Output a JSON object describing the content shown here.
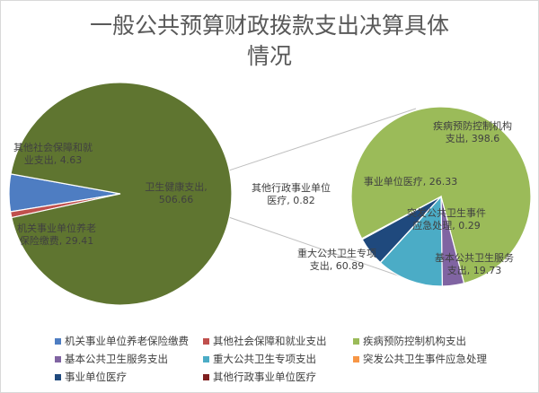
{
  "chart_data": {
    "type": "pie",
    "subtype": "pie-of-pie",
    "title_line1": "一般公共预算财政拨款支出决算具体",
    "title_line2": "情况",
    "main_pie": [
      {
        "name": "机关事业单位养老保险缴费",
        "value": 29.41,
        "label_line1": "机关事业单位养老",
        "label_line2": "保险缴费, 29.41",
        "color": "#4e7dc2"
      },
      {
        "name": "其他社会保障和就业支出",
        "value": 4.63,
        "label_line1": "其他社会保障和就",
        "label_line2": "业支出, 4.63",
        "color": "#c0504d"
      },
      {
        "name": "卫生健康支出",
        "value": 506.66,
        "label_line1": "卫生健康支出,",
        "label_line2": "506.66",
        "color": "#5f7530"
      }
    ],
    "secondary_pie": [
      {
        "name": "疾病预防控制机构支出",
        "value": 398.6,
        "label_line1": "疾病预防控制机构",
        "label_line2": "支出, 398.6",
        "color": "#9bbb59"
      },
      {
        "name": "基本公共卫生服务支出",
        "value": 19.73,
        "label_line1": "基本公共卫生服务",
        "label_line2": "支出, 19.73",
        "color": "#8064a2"
      },
      {
        "name": "重大公共卫生专项支出",
        "value": 60.89,
        "label_line1": "重大公共卫生专项",
        "label_line2": "支出, 60.89",
        "color": "#4bacc6"
      },
      {
        "name": "突发公共卫生事件应急处理",
        "value": 0.29,
        "label_line1": "突发公共卫生事件",
        "label_line2": "应急处理, 0.29",
        "color": "#f79646"
      },
      {
        "name": "事业单位医疗",
        "value": 26.33,
        "label_line1": "事业单位医疗, 26.33",
        "label_line2": "",
        "color": "#1f497d"
      },
      {
        "name": "其他行政事业单位医疗",
        "value": 0.82,
        "label_line1": "其他行政事业单位",
        "label_line2": "医疗, 0.82",
        "color": "#7f1f1f"
      }
    ],
    "legend_position": "bottom",
    "legend_items": [
      {
        "name": "机关事业单位养老保险缴费",
        "color": "#4e7dc2"
      },
      {
        "name": "其他社会保障和就业支出",
        "color": "#c0504d"
      },
      {
        "name": "疾病预防控制机构支出",
        "color": "#9bbb59"
      },
      {
        "name": "基本公共卫生服务支出",
        "color": "#8064a2"
      },
      {
        "name": "重大公共卫生专项支出",
        "color": "#4bacc6"
      },
      {
        "name": "突发公共卫生事件应急处理",
        "color": "#f79646"
      },
      {
        "name": "事业单位医疗",
        "color": "#1f497d"
      },
      {
        "name": "其他行政事业单位医疗",
        "color": "#7f1f1f"
      }
    ]
  }
}
